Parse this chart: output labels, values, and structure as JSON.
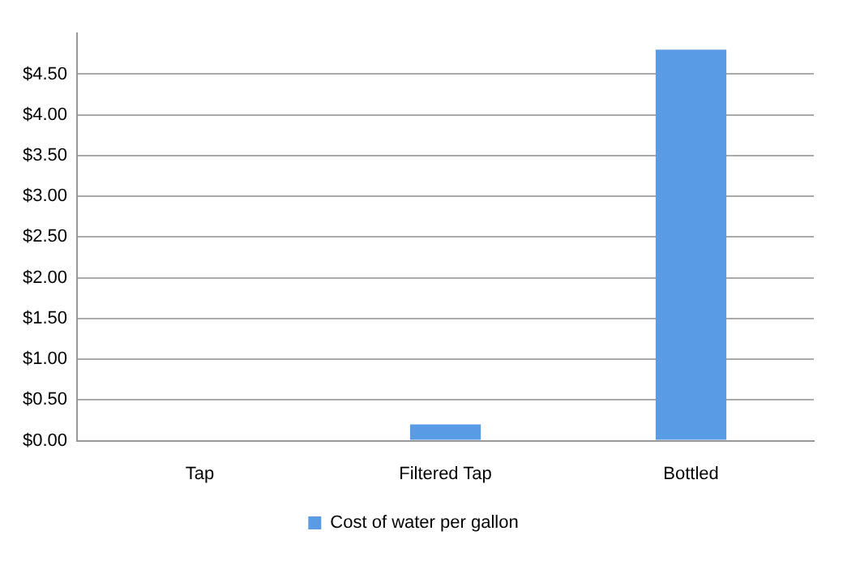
{
  "chart_data": {
    "type": "bar",
    "categories": [
      "Tap",
      "Filtered Tap",
      "Bottled"
    ],
    "series": [
      {
        "name": "Cost of water per gallon",
        "color": "#5a9be6",
        "values": [
          0,
          0.2,
          4.8
        ]
      }
    ],
    "ylim": [
      0,
      5
    ],
    "yticks": [
      {
        "value": 0,
        "label": "$0.00"
      },
      {
        "value": 0.5,
        "label": "$0.50"
      },
      {
        "value": 1,
        "label": "$1.00"
      },
      {
        "value": 1.5,
        "label": "$1.50"
      },
      {
        "value": 2,
        "label": "$2.00"
      },
      {
        "value": 2.5,
        "label": "$2.50"
      },
      {
        "value": 3,
        "label": "$3.00"
      },
      {
        "value": 3.5,
        "label": "$3.50"
      },
      {
        "value": 4,
        "label": "$4.00"
      },
      {
        "value": 4.5,
        "label": "$4.50"
      }
    ],
    "grid": "y",
    "legend": "bottom"
  }
}
